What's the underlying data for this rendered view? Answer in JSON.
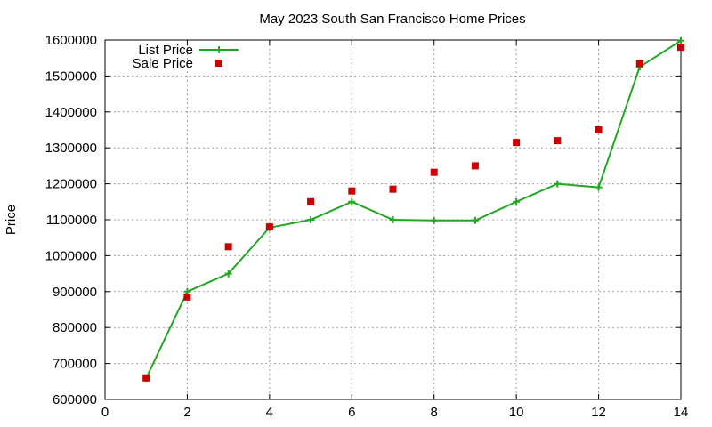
{
  "chart_data": {
    "type": "line",
    "title": "May 2023 South San Francisco Home Prices",
    "xlabel": "",
    "ylabel": "Price",
    "xlim": [
      0,
      14
    ],
    "ylim": [
      600000,
      1600000
    ],
    "xticks": [
      0,
      2,
      4,
      6,
      8,
      10,
      12,
      14
    ],
    "yticks": [
      600000,
      700000,
      800000,
      900000,
      1000000,
      1100000,
      1200000,
      1300000,
      1400000,
      1500000,
      1600000
    ],
    "grid": true,
    "legend_position": "top-left",
    "series": [
      {
        "name": "List Price",
        "style": "line+cross",
        "color": "#22a722",
        "x": [
          1,
          2,
          3,
          4,
          5,
          6,
          7,
          8,
          9,
          10,
          11,
          12,
          13,
          14
        ],
        "values": [
          659000,
          900000,
          950000,
          1078000,
          1100000,
          1150000,
          1100000,
          1098000,
          1098000,
          1150000,
          1200000,
          1190000,
          1525000,
          1598000
        ]
      },
      {
        "name": "Sale Price",
        "style": "square-marker",
        "color": "#cc0000",
        "x": [
          1,
          2,
          3,
          4,
          5,
          6,
          7,
          8,
          9,
          10,
          11,
          12,
          13,
          14
        ],
        "values": [
          660000,
          885000,
          1025000,
          1080000,
          1150000,
          1180000,
          1185000,
          1232000,
          1250000,
          1315000,
          1320000,
          1350000,
          1535000,
          1580000
        ]
      }
    ]
  }
}
